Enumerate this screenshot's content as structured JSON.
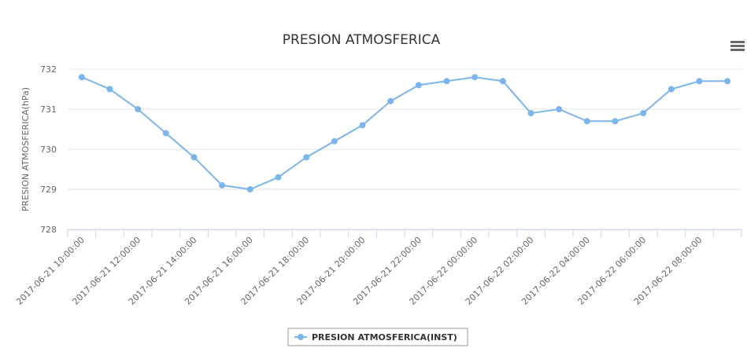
{
  "chart_data": {
    "type": "line",
    "title": "PRESION ATMOSFERICA",
    "y_axis_label": "PRESION ATMOSFERICA(hPa)",
    "categories": [
      "2017-06-21 10:00:00",
      null,
      "2017-06-21 12:00:00",
      null,
      "2017-06-21 14:00:00",
      null,
      "2017-06-21 16:00:00",
      null,
      "2017-06-21 18:00:00",
      null,
      "2017-06-21 20:00:00",
      null,
      "2017-06-21 22:00:00",
      null,
      "2017-06-22 00:00:00",
      null,
      "2017-06-22 02:00:00",
      null,
      "2017-06-22 04:00:00",
      null,
      "2017-06-22 06:00:00",
      null,
      "2017-06-22 08:00:00",
      null
    ],
    "series": [
      {
        "name": "PRESION ATMOSFERICA(INST)",
        "color": "#7cb5ec",
        "values": [
          731.8,
          731.5,
          731.0,
          730.4,
          729.8,
          729.1,
          729.0,
          729.3,
          729.8,
          730.2,
          730.6,
          731.2,
          731.6,
          731.7,
          731.8,
          731.7,
          730.9,
          731.0,
          730.7,
          730.7,
          730.9,
          731.5,
          731.7,
          731.7
        ]
      }
    ],
    "ylim": [
      728,
      732
    ],
    "yticks": [
      728,
      729,
      730,
      731,
      732
    ],
    "grid": true,
    "legend": "bottom"
  }
}
